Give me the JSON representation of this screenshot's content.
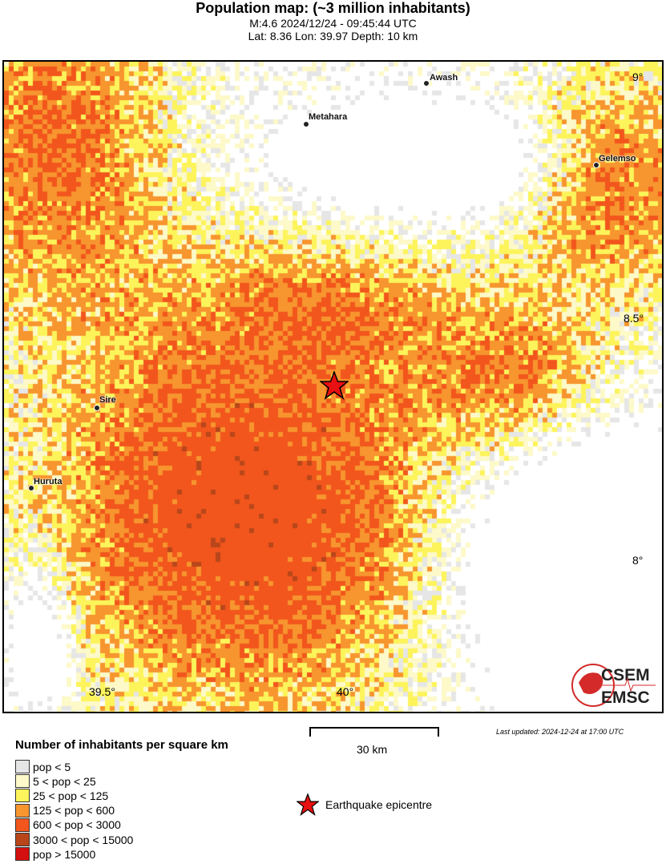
{
  "header": {
    "title": "Population map: (~3 million inhabitants)",
    "line1": "M:4.6 2024/12/24 - 09:45:44 UTC",
    "line2": "Lat: 8.36 Lon: 39.97 Depth: 10 km"
  },
  "map": {
    "cities": [
      {
        "name": "Awash"
      },
      {
        "name": "Metahara"
      },
      {
        "name": "Gelemso"
      },
      {
        "name": "Sire"
      },
      {
        "name": "Huruta"
      }
    ],
    "lat_labels": [
      "9°",
      "8.5°",
      "8°"
    ],
    "lon_labels": [
      "39.5°",
      "40°"
    ],
    "epicenter_icon": "red-star-icon",
    "logo": {
      "text_top": "CSEM",
      "text_bottom": "EMSC"
    }
  },
  "scale_bar": {
    "label": "30 km"
  },
  "last_updated": "Last updated: 2024-12-24 at 17:00 UTC",
  "legend": {
    "title": "Number of inhabitants per square km",
    "items": [
      {
        "label": "pop < 5",
        "color": "#e6e6e6"
      },
      {
        "label": "5 < pop < 25",
        "color": "#fdf9c8"
      },
      {
        "label": "25 < pop < 125",
        "color": "#fcf45a"
      },
      {
        "label": "125 < pop < 600",
        "color": "#f7952e"
      },
      {
        "label": "600 < pop < 3000",
        "color": "#f2561c"
      },
      {
        "label": "3000 < pop < 15000",
        "color": "#b8461a"
      },
      {
        "label": "pop > 15000",
        "color": "#d40f0f"
      }
    ],
    "epicentre_label": "Earthquake epicentre"
  }
}
